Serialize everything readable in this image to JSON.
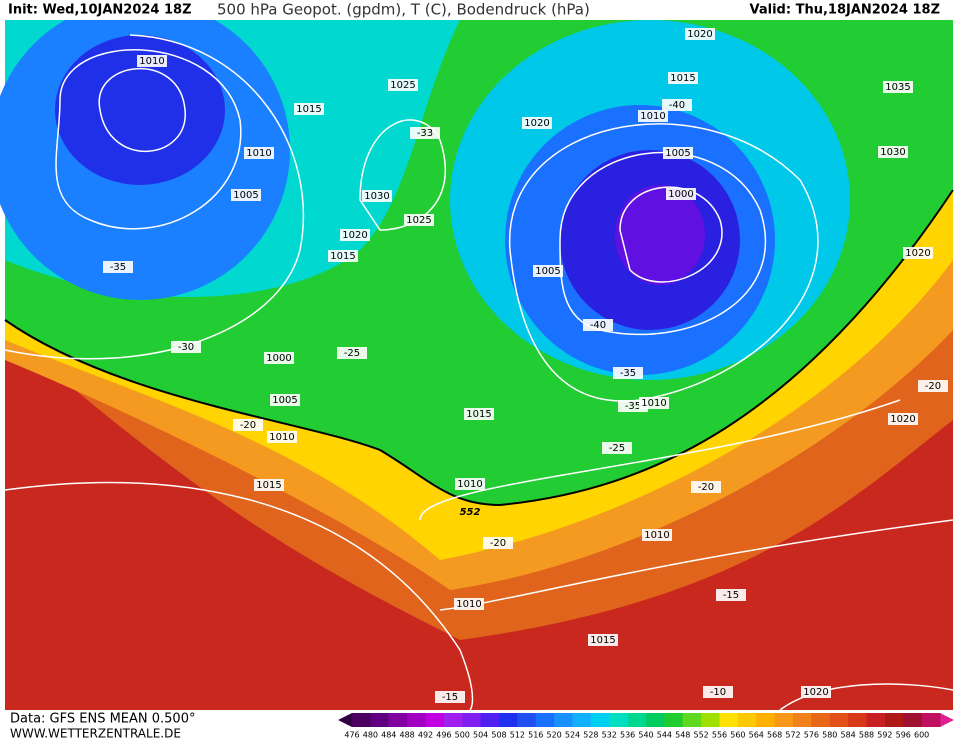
{
  "header": {
    "init": "Init: Wed,10JAN2024 18Z",
    "title": "500 hPa Geopot. (gpdm), T (C), Bodendruck (hPa)",
    "valid": "Valid: Thu,18JAN2024 18Z"
  },
  "map": {
    "labels": [
      "1010",
      "1015",
      "1010",
      "1005",
      "-35",
      "-30",
      "1000",
      "-25",
      "1005",
      "-20",
      "1010",
      "1015",
      "1025",
      "-33",
      "1030",
      "1025",
      "1020",
      "1015",
      "1020",
      "1015",
      "-40",
      "1010",
      "1020",
      "1035",
      "1005",
      "1030",
      "1000",
      "1020",
      "1005",
      "-40",
      "-35",
      "-35",
      "1010",
      "-25",
      "1015",
      "-20",
      "1020",
      "1010",
      "552",
      "-20",
      "-20",
      "1010",
      "1010",
      "-15",
      "1015",
      "-15",
      "-10",
      "1020"
    ]
  },
  "footer": {
    "data": "Data: GFS ENS MEAN 0.500°",
    "site": "WWW.WETTERZENTRALE.DE"
  },
  "colorbar": {
    "labels": [
      476,
      480,
      484,
      488,
      492,
      496,
      500,
      504,
      508,
      512,
      516,
      520,
      524,
      528,
      532,
      536,
      540,
      544,
      548,
      552,
      556,
      560,
      564,
      568,
      572,
      576,
      580,
      584,
      588,
      592,
      596,
      600
    ]
  }
}
